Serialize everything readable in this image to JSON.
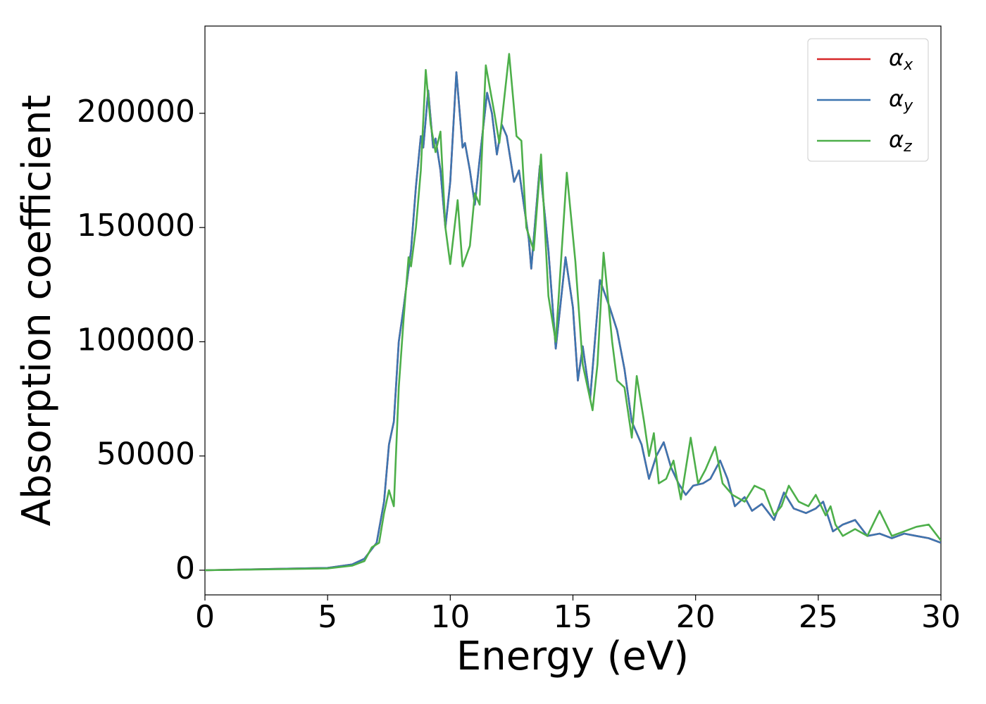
{
  "chart_data": {
    "type": "line",
    "xlabel": "Energy (eV)",
    "ylabel": "Absorption coefficient",
    "xlim": [
      0,
      30
    ],
    "ylim": [
      -10800,
      238200
    ],
    "xticks": [
      0,
      5,
      10,
      15,
      20,
      25,
      30
    ],
    "yticks": [
      0,
      50000,
      100000,
      150000,
      200000
    ],
    "grid": false,
    "legend": "upper right",
    "series": [
      {
        "name": "αx",
        "color": "#d62728",
        "x": [
          0,
          5,
          6,
          6.5,
          7,
          7.3,
          7.5,
          7.7,
          7.9,
          8.1,
          8.4,
          8.6,
          8.8,
          8.9,
          9.1,
          9.3,
          9.4,
          9.6,
          9.8,
          10,
          10.25,
          10.5,
          10.6,
          10.8,
          11,
          11.2,
          11.5,
          11.7,
          11.9,
          12.1,
          12.3,
          12.6,
          12.8,
          13,
          13.2,
          13.3,
          13.65,
          14,
          14.3,
          14.7,
          15,
          15.2,
          15.4,
          15.7,
          16.1,
          16.5,
          16.8,
          17.1,
          17.4,
          17.8,
          18.1,
          18.4,
          18.7,
          19,
          19.3,
          19.6,
          19.9,
          20.3,
          20.6,
          21,
          21.3,
          21.6,
          22,
          22.3,
          22.7,
          23.2,
          23.6,
          24,
          24.5,
          24.9,
          25.2,
          25.6,
          26,
          26.5,
          27,
          27.5,
          28,
          28.5,
          29,
          29.5,
          30
        ],
        "values": [
          0,
          1000,
          2500,
          5000,
          12000,
          30000,
          55000,
          65000,
          100000,
          115000,
          140000,
          168000,
          190000,
          185000,
          210000,
          185000,
          189000,
          175000,
          150000,
          170000,
          218000,
          185000,
          187000,
          175000,
          160000,
          180000,
          209000,
          200000,
          182000,
          195000,
          190000,
          170000,
          175000,
          160000,
          145000,
          132000,
          177000,
          140000,
          97000,
          137000,
          115000,
          83000,
          98000,
          75000,
          127000,
          115000,
          105000,
          88000,
          65000,
          55000,
          40000,
          50000,
          56000,
          45000,
          38000,
          33000,
          37000,
          38000,
          40000,
          48000,
          40000,
          28000,
          32000,
          26000,
          29000,
          22000,
          34000,
          27000,
          25000,
          27000,
          30000,
          17000,
          20000,
          22000,
          15000,
          16000,
          14000,
          16000,
          15000,
          14000,
          12000
        ]
      },
      {
        "name": "αy",
        "color": "#3d75b0",
        "x": [
          0,
          5,
          6,
          6.5,
          7,
          7.3,
          7.5,
          7.7,
          7.9,
          8.1,
          8.4,
          8.6,
          8.8,
          8.9,
          9.1,
          9.3,
          9.4,
          9.6,
          9.8,
          10,
          10.25,
          10.5,
          10.6,
          10.8,
          11,
          11.2,
          11.5,
          11.7,
          11.9,
          12.1,
          12.3,
          12.6,
          12.8,
          13,
          13.2,
          13.3,
          13.65,
          14,
          14.3,
          14.7,
          15,
          15.2,
          15.4,
          15.7,
          16.1,
          16.5,
          16.8,
          17.1,
          17.4,
          17.8,
          18.1,
          18.4,
          18.7,
          19,
          19.3,
          19.6,
          19.9,
          20.3,
          20.6,
          21,
          21.3,
          21.6,
          22,
          22.3,
          22.7,
          23.2,
          23.6,
          24,
          24.5,
          24.9,
          25.2,
          25.6,
          26,
          26.5,
          27,
          27.5,
          28,
          28.5,
          29,
          29.5,
          30
        ],
        "values": [
          0,
          1000,
          2500,
          5000,
          12000,
          30000,
          55000,
          65000,
          100000,
          115000,
          140000,
          168000,
          190000,
          185000,
          210000,
          185000,
          189000,
          175000,
          150000,
          170000,
          218000,
          185000,
          187000,
          175000,
          160000,
          180000,
          209000,
          200000,
          182000,
          195000,
          190000,
          170000,
          175000,
          160000,
          145000,
          132000,
          177000,
          140000,
          97000,
          137000,
          115000,
          83000,
          98000,
          75000,
          127000,
          115000,
          105000,
          88000,
          65000,
          55000,
          40000,
          50000,
          56000,
          45000,
          38000,
          33000,
          37000,
          38000,
          40000,
          48000,
          40000,
          28000,
          32000,
          26000,
          29000,
          22000,
          34000,
          27000,
          25000,
          27000,
          30000,
          17000,
          20000,
          22000,
          15000,
          16000,
          14000,
          16000,
          15000,
          14000,
          12000
        ]
      },
      {
        "name": "αz",
        "color": "#4daf4a",
        "x": [
          0,
          5,
          6,
          6.5,
          6.8,
          7.1,
          7.3,
          7.5,
          7.7,
          7.9,
          8.1,
          8.3,
          8.4,
          8.6,
          8.8,
          9,
          9.2,
          9.4,
          9.6,
          9.8,
          10,
          10.3,
          10.5,
          10.8,
          11,
          11.2,
          11.45,
          11.8,
          12,
          12.4,
          12.7,
          12.9,
          13.1,
          13.4,
          13.7,
          14,
          14.3,
          14.75,
          15.1,
          15.4,
          15.8,
          16,
          16.25,
          16.6,
          16.8,
          17.1,
          17.4,
          17.6,
          17.9,
          18.1,
          18.3,
          18.5,
          18.8,
          19.1,
          19.4,
          19.8,
          20.1,
          20.4,
          20.8,
          21.1,
          21.5,
          22,
          22.4,
          22.8,
          23.2,
          23.5,
          23.8,
          24.2,
          24.6,
          24.9,
          25.3,
          25.5,
          25.7,
          26,
          26.5,
          27,
          27.5,
          28,
          28.5,
          29,
          29.5,
          30
        ],
        "values": [
          0,
          800,
          2000,
          4000,
          10000,
          12000,
          25000,
          35000,
          28000,
          80000,
          110000,
          137000,
          133000,
          150000,
          175000,
          219000,
          195000,
          183000,
          192000,
          150000,
          134000,
          162000,
          133000,
          142000,
          165000,
          160000,
          221000,
          200000,
          187000,
          226000,
          190000,
          188000,
          150000,
          140000,
          182000,
          120000,
          100000,
          174000,
          135000,
          90000,
          70000,
          90000,
          139000,
          100000,
          83000,
          80000,
          58000,
          85000,
          65000,
          50000,
          60000,
          38000,
          40000,
          48000,
          31000,
          58000,
          38000,
          44000,
          54000,
          38000,
          33000,
          30000,
          37000,
          35000,
          24000,
          28000,
          37000,
          30000,
          28000,
          33000,
          24000,
          28000,
          20000,
          15000,
          18000,
          15000,
          26000,
          15000,
          17000,
          19000,
          20000,
          13000
        ]
      }
    ]
  }
}
